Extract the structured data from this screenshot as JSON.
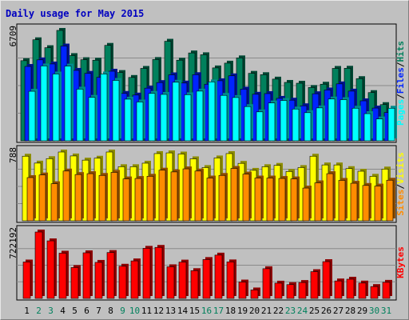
{
  "title": "Daily usage for May 2015",
  "colors": {
    "hits": "#00805c",
    "files": "#0024ff",
    "pages": "#00ffff",
    "visits": "#ffff00",
    "sites": "#ff8c00",
    "kbytes": "#ff0000",
    "weekday_label": "#000000",
    "weekend_label": "#00805c"
  },
  "chart_data": {
    "type": "bar",
    "categories": [
      "1",
      "2",
      "3",
      "4",
      "5",
      "6",
      "7",
      "8",
      "9",
      "10",
      "11",
      "12",
      "13",
      "14",
      "15",
      "16",
      "17",
      "18",
      "19",
      "20",
      "21",
      "22",
      "23",
      "24",
      "25",
      "26",
      "27",
      "28",
      "29",
      "30",
      "31"
    ],
    "weekend_days": [
      "2",
      "3",
      "9",
      "10",
      "16",
      "17",
      "23",
      "24",
      "30",
      "31"
    ],
    "panels": [
      {
        "axis_max_label": "6709",
        "ymax": 6709,
        "legend": [
          "Pages",
          "Files",
          "Hits"
        ],
        "series": [
          {
            "name": "Hits",
            "color_key": "hits",
            "values": [
              4870,
              6140,
              5660,
              6710,
              5180,
              4930,
              4900,
              5800,
              4150,
              3850,
              4400,
              4940,
              6050,
              4900,
              5340,
              5230,
              4430,
              4720,
              5040,
              4100,
              4020,
              3750,
              3550,
              3500,
              3240,
              3440,
              4400,
              4410,
              3780,
              2930,
              2200
            ]
          },
          {
            "name": "Files",
            "color_key": "files",
            "values": [
              4520,
              4920,
              4670,
              5760,
              4280,
              4100,
              3860,
              4230,
              2880,
              2780,
              3200,
              3540,
              4010,
              3510,
              4020,
              3440,
              3650,
              3950,
              3140,
              2830,
              2870,
              2580,
              2470,
              2130,
              2860,
              3090,
              3460,
              3020,
              2430,
              1990,
              1720
            ]
          },
          {
            "name": "Pages",
            "color_key": "pages",
            "values": [
              3010,
              4550,
              4060,
              4540,
              3140,
              2640,
              4060,
              3670,
              2530,
              2360,
              2880,
              2820,
              3560,
              2800,
              3020,
              3580,
              2760,
              2630,
              2080,
              1760,
              2300,
              2450,
              1930,
              1710,
              2000,
              2540,
              2500,
              1980,
              1650,
              1330,
              1980
            ]
          }
        ]
      },
      {
        "axis_max_label": "788",
        "ymax": 788,
        "legend": [
          "Sites",
          "Visits"
        ],
        "series": [
          {
            "name": "Visits",
            "color_key": "visits",
            "values": [
              740,
              661,
              712,
              788,
              743,
              695,
              717,
              788,
              620,
              620,
              660,
              770,
              778,
              765,
              710,
              610,
              720,
              770,
              658,
              578,
              620,
              635,
              565,
              610,
              740,
              640,
              640,
              598,
              568,
              510,
              593
            ]
          },
          {
            "name": "Sites",
            "color_key": "sites",
            "values": [
              495,
              525,
              425,
              570,
              530,
              540,
              520,
              555,
              480,
              485,
              510,
              580,
              560,
              595,
              570,
              490,
              520,
              600,
              535,
              490,
              490,
              485,
              480,
              375,
              435,
              540,
              463,
              430,
              405,
              398,
              465
            ]
          }
        ]
      },
      {
        "axis_max_label": "722192",
        "ymax": 722192,
        "legend": [
          "KBytes"
        ],
        "series": [
          {
            "name": "KBytes",
            "color_key": "kbytes",
            "values": [
              396000,
              722192,
              626000,
              492000,
              336000,
              496000,
              392000,
              499000,
              350000,
              408000,
              545000,
              555000,
              344000,
              395000,
              302000,
              423000,
              471000,
              397000,
              178000,
              92000,
              323000,
              166000,
              150000,
              173000,
              291000,
              400000,
              190000,
              209000,
              167000,
              129000,
              175000
            ]
          }
        ]
      }
    ]
  }
}
